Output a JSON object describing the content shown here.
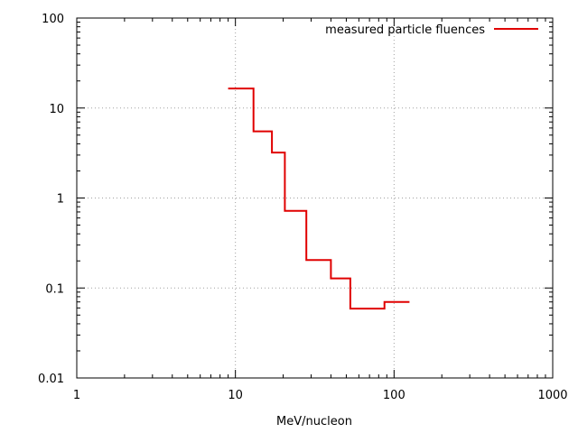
{
  "chart_data": {
    "type": "line",
    "line_style": "step",
    "xlabel": "MeV/nucleon",
    "ylabel": "",
    "xscale": "log",
    "yscale": "log",
    "xlim": [
      1,
      1000
    ],
    "ylim": [
      0.01,
      100
    ],
    "x_ticks": [
      "1",
      "10",
      "100",
      "1000"
    ],
    "y_ticks": [
      "0.01",
      "0.1",
      "1",
      "10",
      "100"
    ],
    "grid": true,
    "legend_position": "top-right",
    "series": [
      {
        "name": "measured particle fluences",
        "color": "#e00000",
        "steps": [
          {
            "x_start": 9,
            "x_end": 13,
            "y": 16.5
          },
          {
            "x_start": 13,
            "x_end": 17,
            "y": 5.5
          },
          {
            "x_start": 17,
            "x_end": 20.5,
            "y": 3.2
          },
          {
            "x_start": 20.5,
            "x_end": 28,
            "y": 0.72
          },
          {
            "x_start": 28,
            "x_end": 40,
            "y": 0.205
          },
          {
            "x_start": 40,
            "x_end": 53,
            "y": 0.128
          },
          {
            "x_start": 53,
            "x_end": 87,
            "y": 0.059
          },
          {
            "x_start": 87,
            "x_end": 125,
            "y": 0.07
          }
        ]
      }
    ]
  }
}
